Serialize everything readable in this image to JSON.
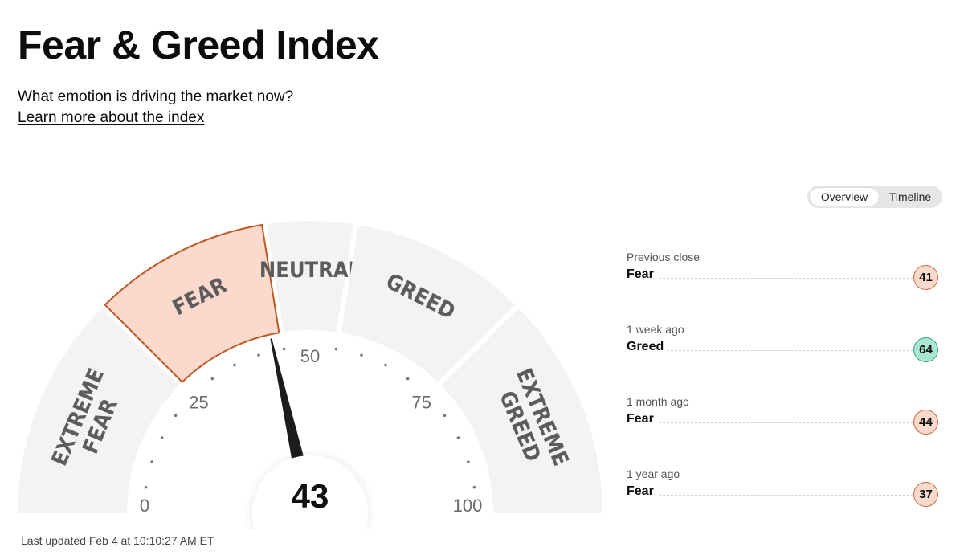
{
  "page": {
    "title": "Fear & Greed Index",
    "subtitle": "What emotion is driving the market now?",
    "learn_link": "Learn more about the index",
    "last_updated": "Last updated Feb 4 at 10:10:27 AM ET"
  },
  "view_toggle": {
    "options": [
      "Overview",
      "Timeline"
    ],
    "selected": "Overview"
  },
  "gauge": {
    "value": 43,
    "min": 0,
    "max": 100,
    "segments": [
      {
        "label_lines": [
          "EXTREME",
          "FEAR"
        ],
        "range": [
          0,
          25
        ]
      },
      {
        "label_lines": [
          "FEAR"
        ],
        "range": [
          25,
          45
        ]
      },
      {
        "label_lines": [
          "NEUTRAL"
        ],
        "range": [
          45,
          55
        ]
      },
      {
        "label_lines": [
          "GREED"
        ],
        "range": [
          55,
          75
        ]
      },
      {
        "label_lines": [
          "EXTREME",
          "GREED"
        ],
        "range": [
          75,
          100
        ]
      }
    ],
    "active_segment": "FEAR",
    "tick_labels": [
      "0",
      "25",
      "50",
      "75",
      "100"
    ],
    "colors": {
      "active_fill": "#fbd9cd",
      "active_stroke": "#c05a25",
      "inactive_fill": "#f3f3f3",
      "needle": "#1c1c1c",
      "label": "#5c5c5c"
    }
  },
  "history": [
    {
      "period": "Previous close",
      "rating": "Fear",
      "value": "41",
      "color_bg": "#fbd9cd",
      "color_border": "#d06a3c"
    },
    {
      "period": "1 week ago",
      "rating": "Greed",
      "value": "64",
      "color_bg": "#a9e6d4",
      "color_border": "#3aa58a"
    },
    {
      "period": "1 month ago",
      "rating": "Fear",
      "value": "44",
      "color_bg": "#fbd9cd",
      "color_border": "#d06a3c"
    },
    {
      "period": "1 year ago",
      "rating": "Fear",
      "value": "37",
      "color_bg": "#fbd9cd",
      "color_border": "#d06a3c"
    }
  ]
}
